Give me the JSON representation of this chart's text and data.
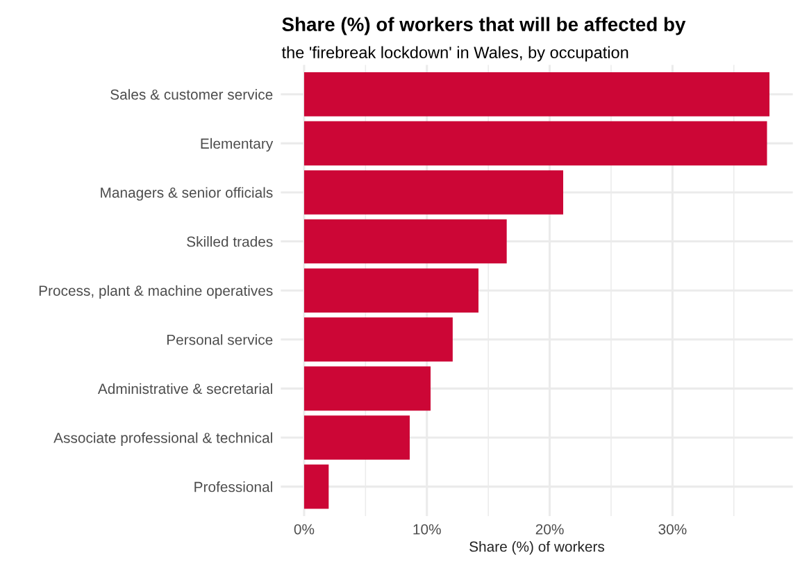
{
  "chart_data": {
    "type": "bar",
    "orientation": "horizontal",
    "title": "Share (%) of workers that will be affected by",
    "subtitle": "the 'firebreak lockdown' in Wales, by occupation",
    "xlabel": "Share (%) of workers",
    "categories": [
      "Sales & customer service",
      "Elementary",
      "Managers & senior officials",
      "Skilled trades",
      "Process, plant & machine operatives",
      "Personal service",
      "Administrative & secretarial",
      "Associate professional & technical",
      "Professional"
    ],
    "values": [
      37.9,
      37.7,
      21.1,
      16.5,
      14.2,
      12.1,
      10.3,
      8.6,
      2.0
    ],
    "color": "#cc0636",
    "xlim": [
      -1.9,
      39.8
    ],
    "xticks": [
      {
        "value": 0,
        "label": "0%"
      },
      {
        "value": 5,
        "label": null
      },
      {
        "value": 10,
        "label": "10%"
      },
      {
        "value": 15,
        "label": null
      },
      {
        "value": 20,
        "label": "20%"
      },
      {
        "value": 25,
        "label": null
      },
      {
        "value": 30,
        "label": "30%"
      },
      {
        "value": 35,
        "label": null
      }
    ],
    "grid": true
  }
}
